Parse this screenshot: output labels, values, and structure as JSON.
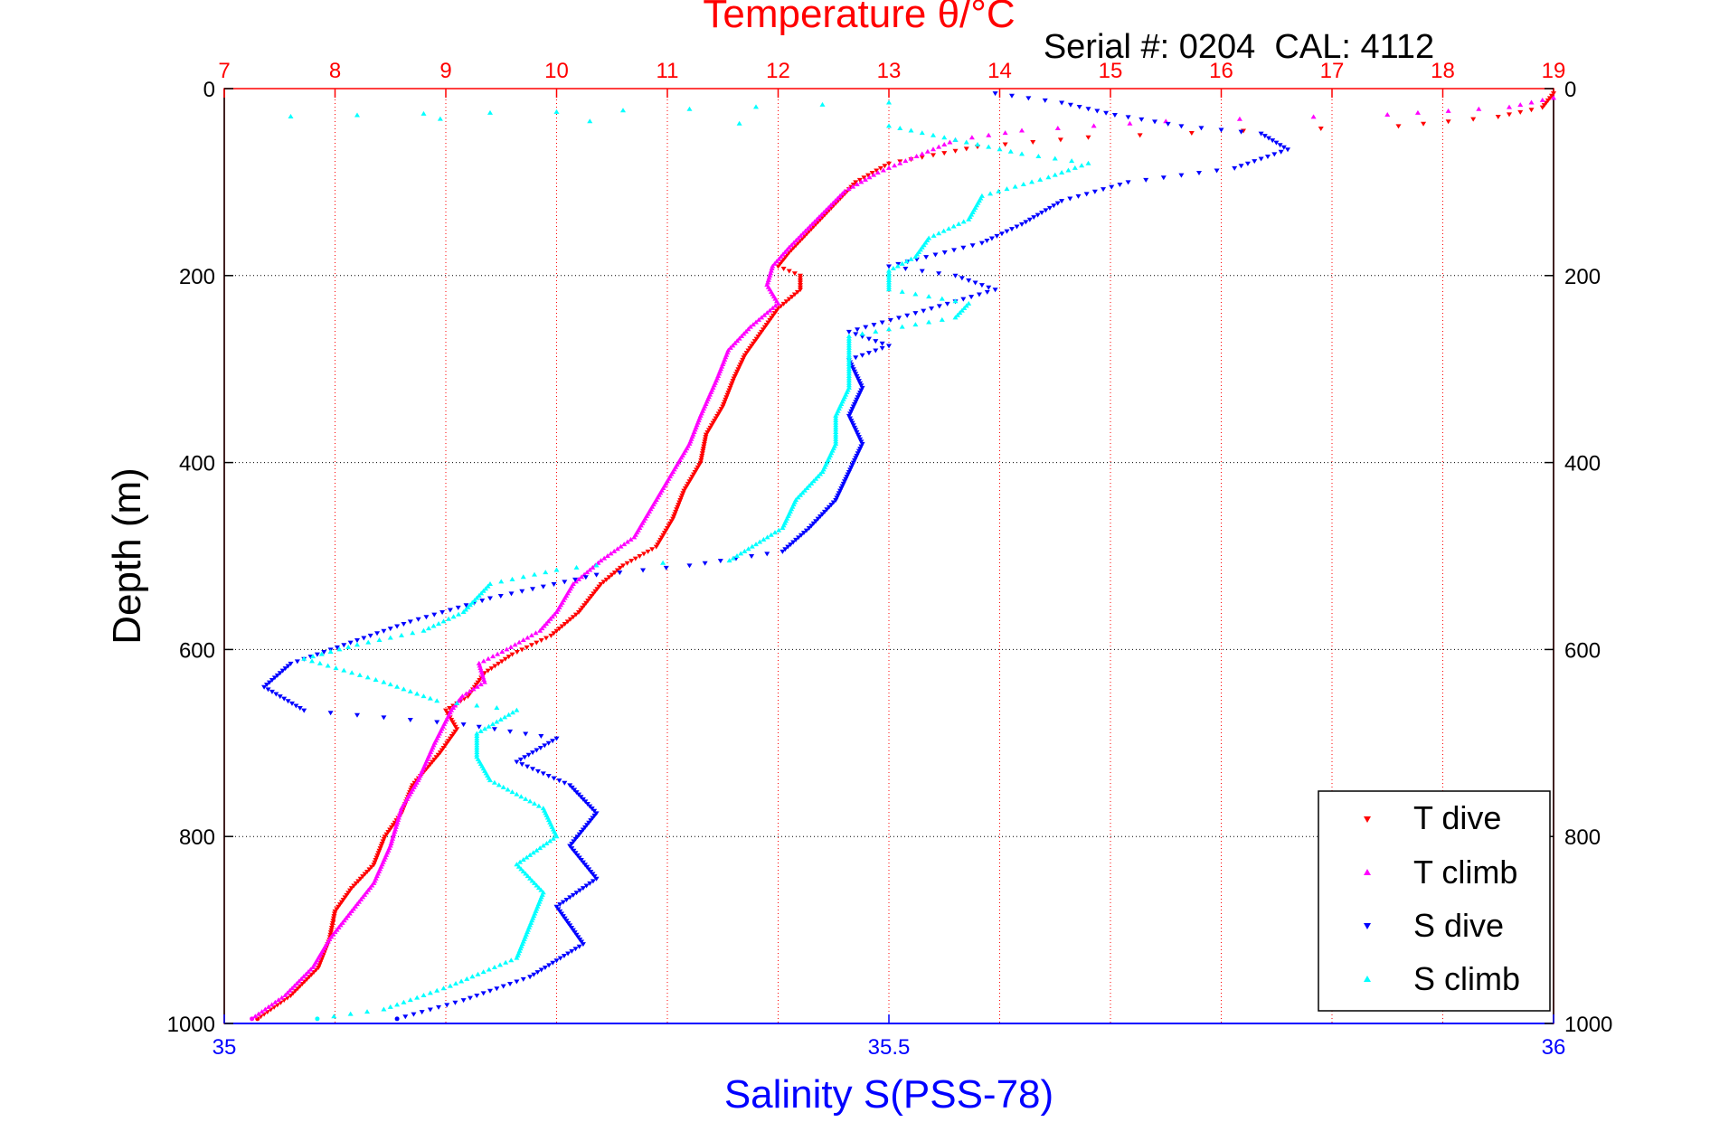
{
  "chart_data": {
    "type": "scatter",
    "title": "Temperature θ/°C",
    "annotation": "Serial #: 0204  CAL: 4112",
    "xlabel_top": "Temperature θ/°C",
    "xlabel_bottom": "Salinity S(PSS-78)",
    "ylabel": "Depth (m)",
    "top_axis": {
      "range": [
        7,
        19
      ],
      "ticks": [
        7,
        8,
        9,
        10,
        11,
        12,
        13,
        14,
        15,
        16,
        17,
        18,
        19
      ],
      "color": "#ff0000"
    },
    "bottom_axis": {
      "range": [
        35,
        36
      ],
      "ticks": [
        35,
        35.5,
        36
      ],
      "tick_labels": [
        "35",
        "35.5",
        "36"
      ],
      "color": "#0000ff"
    },
    "y_axis": {
      "range": [
        0,
        1000
      ],
      "reversed": true,
      "ticks": [
        0,
        200,
        400,
        600,
        800,
        1000
      ],
      "tick_labels": [
        "0",
        "200",
        "400",
        "600",
        "800",
        "1000"
      ]
    },
    "grid": true,
    "legend_position": "bottom-right",
    "series": [
      {
        "name": "T dive",
        "axis": "temperature",
        "color": "#ff0000",
        "marker": "triangle-down",
        "points": [
          [
            19.0,
            5
          ],
          [
            18.9,
            20
          ],
          [
            18.5,
            30
          ],
          [
            17.6,
            40
          ],
          [
            16.2,
            45
          ],
          [
            14.8,
            52
          ],
          [
            13.8,
            62
          ],
          [
            13.0,
            80
          ],
          [
            12.7,
            100
          ],
          [
            12.5,
            125
          ],
          [
            12.3,
            150
          ],
          [
            12.1,
            175
          ],
          [
            12.0,
            190
          ],
          [
            12.2,
            200
          ],
          [
            12.2,
            215
          ],
          [
            12.0,
            235
          ],
          [
            11.85,
            260
          ],
          [
            11.7,
            285
          ],
          [
            11.6,
            310
          ],
          [
            11.5,
            340
          ],
          [
            11.35,
            370
          ],
          [
            11.3,
            400
          ],
          [
            11.15,
            430
          ],
          [
            11.05,
            460
          ],
          [
            10.9,
            490
          ],
          [
            10.6,
            510
          ],
          [
            10.4,
            530
          ],
          [
            10.2,
            560
          ],
          [
            9.95,
            585
          ],
          [
            9.6,
            605
          ],
          [
            9.35,
            625
          ],
          [
            9.2,
            650
          ],
          [
            9.0,
            665
          ],
          [
            9.1,
            685
          ],
          [
            8.95,
            710
          ],
          [
            8.7,
            745
          ],
          [
            8.6,
            775
          ],
          [
            8.45,
            800
          ],
          [
            8.35,
            830
          ],
          [
            8.15,
            855
          ],
          [
            8.0,
            880
          ],
          [
            7.95,
            910
          ],
          [
            7.85,
            940
          ],
          [
            7.6,
            970
          ],
          [
            7.3,
            995
          ]
        ]
      },
      {
        "name": "T climb",
        "axis": "temperature",
        "color": "#ff00ff",
        "marker": "triangle-up",
        "points": [
          [
            19.0,
            10
          ],
          [
            18.6,
            20
          ],
          [
            17.5,
            28
          ],
          [
            15.5,
            35
          ],
          [
            14.2,
            45
          ],
          [
            13.6,
            55
          ],
          [
            13.3,
            70
          ],
          [
            12.9,
            90
          ],
          [
            12.6,
            110
          ],
          [
            12.35,
            140
          ],
          [
            12.1,
            170
          ],
          [
            11.95,
            190
          ],
          [
            11.9,
            210
          ],
          [
            12.0,
            230
          ],
          [
            11.75,
            255
          ],
          [
            11.55,
            280
          ],
          [
            11.45,
            310
          ],
          [
            11.3,
            350
          ],
          [
            11.2,
            380
          ],
          [
            11.0,
            420
          ],
          [
            10.85,
            450
          ],
          [
            10.7,
            480
          ],
          [
            10.4,
            505
          ],
          [
            10.15,
            530
          ],
          [
            10.0,
            560
          ],
          [
            9.85,
            580
          ],
          [
            9.55,
            600
          ],
          [
            9.3,
            615
          ],
          [
            9.35,
            635
          ],
          [
            9.15,
            650
          ],
          [
            9.05,
            665
          ],
          [
            8.9,
            700
          ],
          [
            8.75,
            740
          ],
          [
            8.6,
            770
          ],
          [
            8.5,
            810
          ],
          [
            8.35,
            850
          ],
          [
            8.15,
            880
          ],
          [
            7.95,
            910
          ],
          [
            7.8,
            940
          ],
          [
            7.55,
            970
          ],
          [
            7.25,
            995
          ]
        ]
      },
      {
        "name": "S dive",
        "axis": "salinity",
        "color": "#0000ff",
        "marker": "triangle-down",
        "points": [
          [
            35.58,
            5
          ],
          [
            35.63,
            15
          ],
          [
            35.67,
            28
          ],
          [
            35.72,
            40
          ],
          [
            35.78,
            48
          ],
          [
            35.8,
            65
          ],
          [
            35.76,
            85
          ],
          [
            35.68,
            100
          ],
          [
            35.63,
            120
          ],
          [
            35.6,
            145
          ],
          [
            35.57,
            165
          ],
          [
            35.5,
            190
          ],
          [
            35.55,
            200
          ],
          [
            35.58,
            215
          ],
          [
            35.52,
            240
          ],
          [
            35.47,
            260
          ],
          [
            35.5,
            275
          ],
          [
            35.47,
            290
          ],
          [
            35.48,
            320
          ],
          [
            35.47,
            350
          ],
          [
            35.48,
            380
          ],
          [
            35.47,
            410
          ],
          [
            35.46,
            440
          ],
          [
            35.44,
            470
          ],
          [
            35.42,
            495
          ],
          [
            35.35,
            510
          ],
          [
            35.28,
            520
          ],
          [
            35.2,
            545
          ],
          [
            35.14,
            570
          ],
          [
            35.1,
            590
          ],
          [
            35.05,
            615
          ],
          [
            35.03,
            640
          ],
          [
            35.06,
            665
          ],
          [
            35.18,
            680
          ],
          [
            35.25,
            695
          ],
          [
            35.22,
            720
          ],
          [
            35.26,
            745
          ],
          [
            35.28,
            775
          ],
          [
            35.26,
            810
          ],
          [
            35.28,
            845
          ],
          [
            35.25,
            875
          ],
          [
            35.27,
            915
          ],
          [
            35.23,
            950
          ],
          [
            35.18,
            975
          ],
          [
            35.13,
            995
          ]
        ]
      },
      {
        "name": "S climb",
        "axis": "salinity",
        "color": "#00ffff",
        "marker": "triangle-up",
        "points": [
          [
            35.5,
            15
          ],
          [
            35.35,
            22
          ],
          [
            35.25,
            25
          ],
          [
            35.15,
            27
          ],
          [
            35.05,
            30
          ],
          [
            35.5,
            40
          ],
          [
            35.55,
            55
          ],
          [
            35.6,
            70
          ],
          [
            35.65,
            80
          ],
          [
            35.62,
            95
          ],
          [
            35.57,
            115
          ],
          [
            35.56,
            140
          ],
          [
            35.53,
            160
          ],
          [
            35.52,
            180
          ],
          [
            35.5,
            195
          ],
          [
            35.5,
            215
          ],
          [
            35.56,
            230
          ],
          [
            35.55,
            245
          ],
          [
            35.47,
            265
          ],
          [
            35.47,
            290
          ],
          [
            35.47,
            320
          ],
          [
            35.46,
            350
          ],
          [
            35.46,
            380
          ],
          [
            35.45,
            410
          ],
          [
            35.43,
            440
          ],
          [
            35.42,
            470
          ],
          [
            35.38,
            505
          ],
          [
            35.28,
            510
          ],
          [
            35.25,
            515
          ],
          [
            35.2,
            530
          ],
          [
            35.18,
            560
          ],
          [
            35.15,
            580
          ],
          [
            35.1,
            595
          ],
          [
            35.06,
            610
          ],
          [
            35.12,
            635
          ],
          [
            35.16,
            655
          ],
          [
            35.22,
            665
          ],
          [
            35.19,
            690
          ],
          [
            35.19,
            715
          ],
          [
            35.2,
            740
          ],
          [
            35.24,
            770
          ],
          [
            35.25,
            800
          ],
          [
            35.22,
            830
          ],
          [
            35.24,
            860
          ],
          [
            35.23,
            895
          ],
          [
            35.22,
            930
          ],
          [
            35.17,
            960
          ],
          [
            35.12,
            985
          ],
          [
            35.07,
            995
          ]
        ]
      }
    ]
  },
  "legend": {
    "t_dive": "T dive",
    "t_climb": "T climb",
    "s_dive": "S dive",
    "s_climb": "S climb"
  },
  "colors": {
    "temperature_axis": "#ff0000",
    "salinity_axis": "#0000ff",
    "t_dive": "#ff0000",
    "t_climb": "#ff00ff",
    "s_dive": "#0000ff",
    "s_climb": "#00ffff"
  }
}
